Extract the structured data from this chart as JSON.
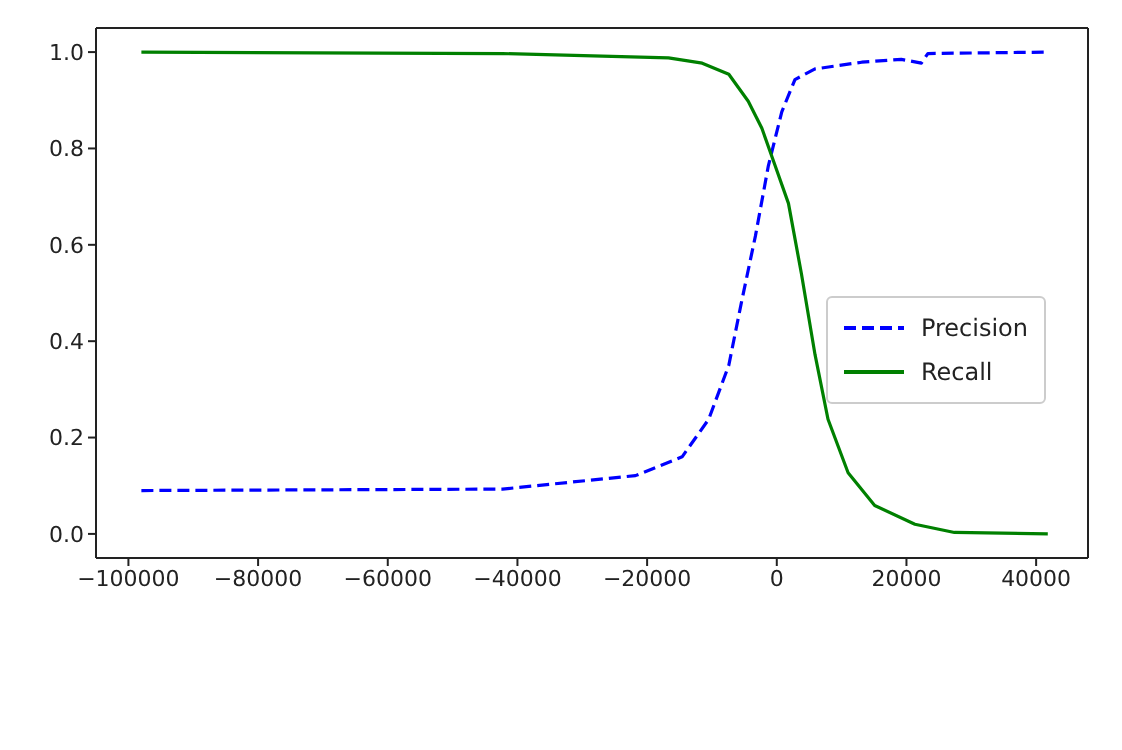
{
  "chart_data": {
    "type": "line",
    "xlim": [
      -105000,
      48000
    ],
    "ylim": [
      -0.05,
      1.05
    ],
    "xticks": [
      {
        "value": -100000,
        "label": "−100000"
      },
      {
        "value": -80000,
        "label": "−80000"
      },
      {
        "value": -60000,
        "label": "−60000"
      },
      {
        "value": -40000,
        "label": "−40000"
      },
      {
        "value": -20000,
        "label": "−20000"
      },
      {
        "value": 0,
        "label": "0"
      },
      {
        "value": 20000,
        "label": "20000"
      },
      {
        "value": 40000,
        "label": "40000"
      }
    ],
    "yticks": [
      {
        "value": 0,
        "label": "0.0"
      },
      {
        "value": 0.2,
        "label": "0.2"
      },
      {
        "value": 0.4,
        "label": "0.4"
      },
      {
        "value": 0.6,
        "label": "0.6"
      },
      {
        "value": 0.8,
        "label": "0.8"
      },
      {
        "value": 1,
        "label": "1.0"
      }
    ],
    "grid": false,
    "legend": "right",
    "series": [
      {
        "name": "Precision",
        "color": "#0000ff",
        "line_style": "dashed",
        "x": [
          -98000,
          -42300,
          -21800,
          -14600,
          -10500,
          -7400,
          -5400,
          -3300,
          -1300,
          770,
          2800,
          5900,
          13100,
          19200,
          22300,
          23300,
          41800
        ],
        "values": [
          0.09,
          0.093,
          0.121,
          0.16,
          0.238,
          0.35,
          0.484,
          0.618,
          0.764,
          0.876,
          0.943,
          0.965,
          0.979,
          0.985,
          0.977,
          0.997,
          1.0
        ]
      },
      {
        "name": "Recall",
        "color": "#008000",
        "line_style": "solid",
        "x": [
          -98000,
          -42300,
          -16700,
          -11500,
          -7400,
          -4400,
          -2300,
          -250,
          1800,
          3800,
          5900,
          7900,
          11000,
          15100,
          21300,
          27400,
          41800
        ],
        "values": [
          1.0,
          0.997,
          0.988,
          0.977,
          0.954,
          0.898,
          0.842,
          0.764,
          0.686,
          0.54,
          0.372,
          0.238,
          0.127,
          0.059,
          0.02,
          0.003,
          0.0
        ]
      }
    ]
  }
}
